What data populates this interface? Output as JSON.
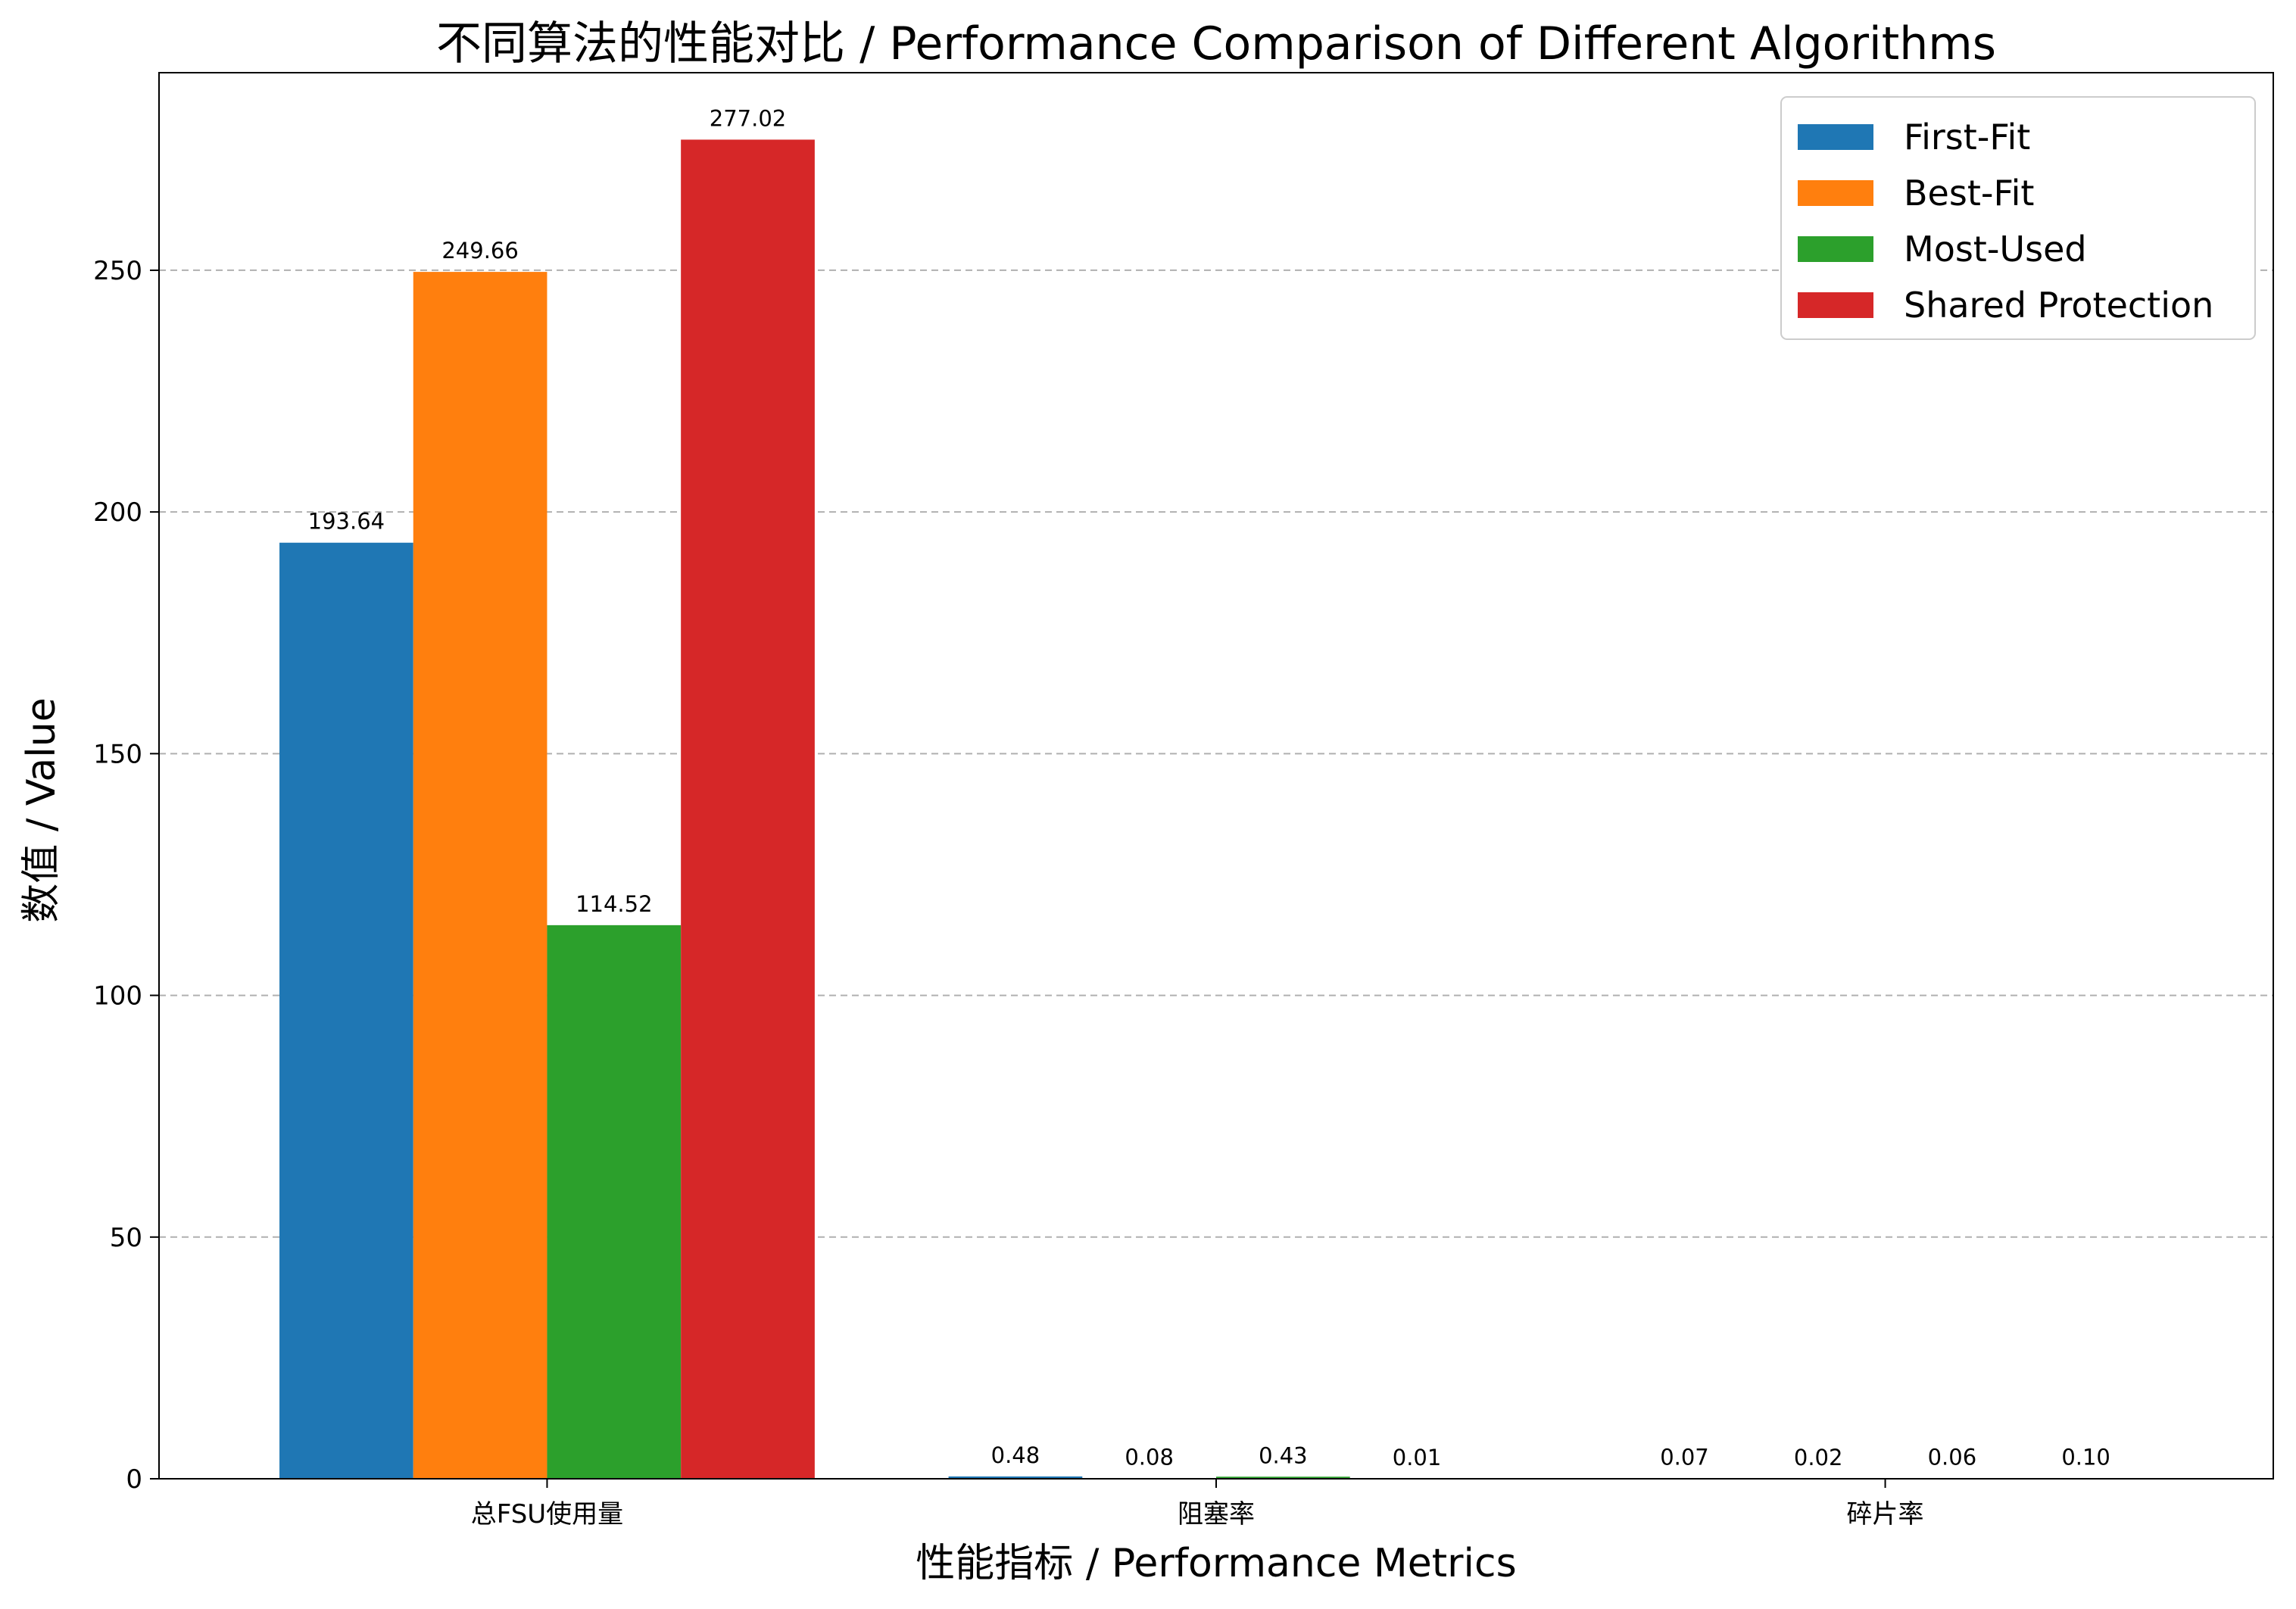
{
  "chart_data": {
    "type": "bar",
    "title": "不同算法的性能对比 / Performance Comparison of Different Algorithms",
    "xlabel": "性能指标 / Performance Metrics",
    "ylabel": "数值 / Value",
    "categories": [
      "总FSU使用量",
      "阻塞率",
      "碎片率"
    ],
    "series": [
      {
        "name": "First-Fit",
        "color": "#1f77b4",
        "values": [
          193.64,
          0.48,
          0.07
        ]
      },
      {
        "name": "Best-Fit",
        "color": "#ff7f0e",
        "values": [
          249.66,
          0.08,
          0.02
        ]
      },
      {
        "name": "Most-Used",
        "color": "#2ca02c",
        "values": [
          114.52,
          0.43,
          0.06
        ]
      },
      {
        "name": "Shared Protection",
        "color": "#d62728",
        "values": [
          277.02,
          0.01,
          0.1
        ]
      }
    ],
    "data_labels": [
      [
        "193.64",
        "0.48",
        "0.07"
      ],
      [
        "249.66",
        "0.08",
        "0.02"
      ],
      [
        "114.52",
        "0.43",
        "0.06"
      ],
      [
        "277.02",
        "0.01",
        "0.10"
      ]
    ],
    "yticks": [
      0,
      50,
      100,
      150,
      200,
      250
    ],
    "ylim": [
      0,
      290.87
    ],
    "grid": "y-dashed",
    "legend_position": "top-right"
  }
}
